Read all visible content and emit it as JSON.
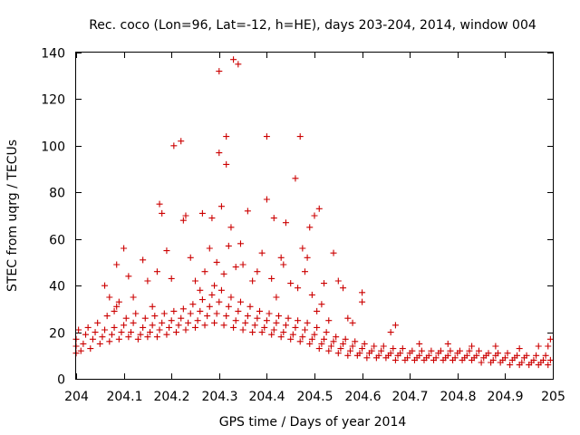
{
  "chart_data": {
    "type": "scatter",
    "title": "Rec. coco (Lon=96, Lat=-12, h=HE), days 203-204, 2014, window 004",
    "xlabel": "GPS time / Days of year 2014",
    "ylabel": "STEC from uqrg / TECUs",
    "xlim": [
      204,
      205
    ],
    "ylim": [
      0,
      140
    ],
    "xticks": [
      204,
      204.1,
      204.2,
      204.3,
      204.4,
      204.5,
      204.6,
      204.7,
      204.8,
      204.9,
      205
    ],
    "xtick_labels": [
      "204",
      "204.1",
      "204.2",
      "204.3",
      "204.4",
      "204.5",
      "204.6",
      "204.7",
      "204.8",
      "204.9",
      "205"
    ],
    "yticks": [
      0,
      20,
      40,
      60,
      80,
      100,
      120,
      140
    ],
    "ytick_labels": [
      "0",
      "20",
      "40",
      "60",
      "80",
      "100",
      "120",
      "140"
    ],
    "grid": false,
    "marker": "+",
    "color": "#cc0000",
    "series": [
      {
        "points": [
          [
            204.0,
            11
          ],
          [
            204.0,
            14
          ],
          [
            204.0,
            17
          ],
          [
            204.005,
            21
          ],
          [
            204.01,
            12
          ],
          [
            204.015,
            15
          ],
          [
            204.02,
            19
          ],
          [
            204.025,
            22
          ],
          [
            204.03,
            13
          ],
          [
            204.035,
            17
          ],
          [
            204.04,
            20
          ],
          [
            204.045,
            24
          ],
          [
            204.05,
            15
          ],
          [
            204.055,
            18
          ],
          [
            204.06,
            21
          ],
          [
            204.065,
            27
          ],
          [
            204.07,
            16
          ],
          [
            204.075,
            19
          ],
          [
            204.08,
            22
          ],
          [
            204.085,
            31
          ],
          [
            204.09,
            17
          ],
          [
            204.095,
            20
          ],
          [
            204.1,
            23
          ],
          [
            204.105,
            26
          ],
          [
            204.11,
            18
          ],
          [
            204.115,
            20
          ],
          [
            204.12,
            24
          ],
          [
            204.125,
            28
          ],
          [
            204.13,
            17
          ],
          [
            204.135,
            19
          ],
          [
            204.14,
            22
          ],
          [
            204.145,
            26
          ],
          [
            204.15,
            18
          ],
          [
            204.155,
            20
          ],
          [
            204.16,
            23
          ],
          [
            204.165,
            27
          ],
          [
            204.17,
            18
          ],
          [
            204.175,
            21
          ],
          [
            204.18,
            24
          ],
          [
            204.185,
            28
          ],
          [
            204.19,
            19
          ],
          [
            204.195,
            22
          ],
          [
            204.2,
            25
          ],
          [
            204.205,
            29
          ],
          [
            204.21,
            20
          ],
          [
            204.215,
            23
          ],
          [
            204.22,
            26
          ],
          [
            204.225,
            30
          ],
          [
            204.23,
            21
          ],
          [
            204.235,
            24
          ],
          [
            204.24,
            28
          ],
          [
            204.245,
            32
          ],
          [
            204.25,
            22
          ],
          [
            204.255,
            25
          ],
          [
            204.26,
            29
          ],
          [
            204.265,
            34
          ],
          [
            204.27,
            23
          ],
          [
            204.275,
            27
          ],
          [
            204.28,
            31
          ],
          [
            204.285,
            36
          ],
          [
            204.29,
            24
          ],
          [
            204.295,
            28
          ],
          [
            204.3,
            33
          ],
          [
            204.305,
            38
          ],
          [
            204.31,
            23
          ],
          [
            204.315,
            27
          ],
          [
            204.32,
            31
          ],
          [
            204.325,
            35
          ],
          [
            204.33,
            22
          ],
          [
            204.335,
            25
          ],
          [
            204.34,
            29
          ],
          [
            204.345,
            33
          ],
          [
            204.35,
            21
          ],
          [
            204.355,
            24
          ],
          [
            204.36,
            27
          ],
          [
            204.365,
            31
          ],
          [
            204.37,
            20
          ],
          [
            204.375,
            23
          ],
          [
            204.38,
            26
          ],
          [
            204.385,
            29
          ],
          [
            204.39,
            20
          ],
          [
            204.395,
            22
          ],
          [
            204.4,
            25
          ],
          [
            204.405,
            28
          ],
          [
            204.41,
            19
          ],
          [
            204.415,
            21
          ],
          [
            204.42,
            24
          ],
          [
            204.425,
            27
          ],
          [
            204.43,
            18
          ],
          [
            204.435,
            20
          ],
          [
            204.44,
            23
          ],
          [
            204.445,
            26
          ],
          [
            204.45,
            17
          ],
          [
            204.455,
            19
          ],
          [
            204.46,
            22
          ],
          [
            204.465,
            25
          ],
          [
            204.47,
            16
          ],
          [
            204.475,
            18
          ],
          [
            204.48,
            21
          ],
          [
            204.485,
            24
          ],
          [
            204.49,
            15
          ],
          [
            204.495,
            17
          ],
          [
            204.5,
            19
          ],
          [
            204.505,
            22
          ],
          [
            204.51,
            13
          ],
          [
            204.515,
            15
          ],
          [
            204.52,
            17
          ],
          [
            204.525,
            20
          ],
          [
            204.53,
            12
          ],
          [
            204.535,
            14
          ],
          [
            204.54,
            16
          ],
          [
            204.545,
            18
          ],
          [
            204.55,
            11
          ],
          [
            204.555,
            13
          ],
          [
            204.56,
            15
          ],
          [
            204.565,
            17
          ],
          [
            204.57,
            10
          ],
          [
            204.575,
            12
          ],
          [
            204.58,
            14
          ],
          [
            204.585,
            16
          ],
          [
            204.59,
            10
          ],
          [
            204.595,
            11
          ],
          [
            204.6,
            13
          ],
          [
            204.605,
            15
          ],
          [
            204.61,
            9
          ],
          [
            204.615,
            11
          ],
          [
            204.62,
            12
          ],
          [
            204.625,
            14
          ],
          [
            204.63,
            9
          ],
          [
            204.635,
            10
          ],
          [
            204.64,
            12
          ],
          [
            204.645,
            14
          ],
          [
            204.65,
            9
          ],
          [
            204.655,
            10
          ],
          [
            204.66,
            11
          ],
          [
            204.665,
            13
          ],
          [
            204.67,
            8
          ],
          [
            204.675,
            10
          ],
          [
            204.68,
            11
          ],
          [
            204.685,
            13
          ],
          [
            204.69,
            8
          ],
          [
            204.695,
            9
          ],
          [
            204.7,
            11
          ],
          [
            204.705,
            12
          ],
          [
            204.71,
            8
          ],
          [
            204.715,
            9
          ],
          [
            204.72,
            10
          ],
          [
            204.725,
            12
          ],
          [
            204.73,
            8
          ],
          [
            204.735,
            9
          ],
          [
            204.74,
            10
          ],
          [
            204.745,
            12
          ],
          [
            204.75,
            8
          ],
          [
            204.755,
            9
          ],
          [
            204.76,
            11
          ],
          [
            204.765,
            12
          ],
          [
            204.77,
            8
          ],
          [
            204.775,
            9
          ],
          [
            204.78,
            10
          ],
          [
            204.785,
            12
          ],
          [
            204.79,
            8
          ],
          [
            204.795,
            9
          ],
          [
            204.8,
            11
          ],
          [
            204.805,
            12
          ],
          [
            204.81,
            8
          ],
          [
            204.815,
            9
          ],
          [
            204.82,
            10
          ],
          [
            204.825,
            12
          ],
          [
            204.83,
            8
          ],
          [
            204.835,
            9
          ],
          [
            204.84,
            10
          ],
          [
            204.845,
            12
          ],
          [
            204.85,
            7
          ],
          [
            204.855,
            9
          ],
          [
            204.86,
            10
          ],
          [
            204.865,
            11
          ],
          [
            204.87,
            7
          ],
          [
            204.875,
            8
          ],
          [
            204.88,
            10
          ],
          [
            204.885,
            11
          ],
          [
            204.89,
            7
          ],
          [
            204.895,
            8
          ],
          [
            204.9,
            9
          ],
          [
            204.905,
            11
          ],
          [
            204.91,
            6
          ],
          [
            204.915,
            8
          ],
          [
            204.92,
            9
          ],
          [
            204.925,
            10
          ],
          [
            204.93,
            6
          ],
          [
            204.935,
            7
          ],
          [
            204.94,
            9
          ],
          [
            204.945,
            10
          ],
          [
            204.95,
            6
          ],
          [
            204.955,
            7
          ],
          [
            204.96,
            8
          ],
          [
            204.965,
            10
          ],
          [
            204.97,
            6
          ],
          [
            204.975,
            7
          ],
          [
            204.98,
            8
          ],
          [
            204.985,
            10
          ],
          [
            204.99,
            6
          ],
          [
            204.995,
            8
          ],
          [
            204.99,
            14
          ],
          [
            204.995,
            17
          ],
          [
            204.06,
            40
          ],
          [
            204.07,
            35
          ],
          [
            204.08,
            29
          ],
          [
            204.085,
            49
          ],
          [
            204.09,
            33
          ],
          [
            204.1,
            56
          ],
          [
            204.11,
            44
          ],
          [
            204.12,
            35
          ],
          [
            204.14,
            51
          ],
          [
            204.15,
            42
          ],
          [
            204.16,
            31
          ],
          [
            204.17,
            46
          ],
          [
            204.175,
            75
          ],
          [
            204.18,
            71
          ],
          [
            204.19,
            55
          ],
          [
            204.2,
            43
          ],
          [
            204.205,
            100
          ],
          [
            204.22,
            102
          ],
          [
            204.225,
            68
          ],
          [
            204.23,
            70
          ],
          [
            204.24,
            52
          ],
          [
            204.25,
            42
          ],
          [
            204.26,
            38
          ],
          [
            204.265,
            71
          ],
          [
            204.27,
            46
          ],
          [
            204.28,
            56
          ],
          [
            204.285,
            69
          ],
          [
            204.29,
            40
          ],
          [
            204.295,
            50
          ],
          [
            204.3,
            97
          ],
          [
            204.3,
            132
          ],
          [
            204.305,
            74
          ],
          [
            204.31,
            45
          ],
          [
            204.315,
            104
          ],
          [
            204.315,
            92
          ],
          [
            204.32,
            57
          ],
          [
            204.325,
            65
          ],
          [
            204.33,
            137
          ],
          [
            204.335,
            48
          ],
          [
            204.34,
            135
          ],
          [
            204.345,
            58
          ],
          [
            204.35,
            49
          ],
          [
            204.36,
            72
          ],
          [
            204.37,
            42
          ],
          [
            204.38,
            46
          ],
          [
            204.39,
            54
          ],
          [
            204.4,
            104
          ],
          [
            204.4,
            77
          ],
          [
            204.41,
            43
          ],
          [
            204.415,
            69
          ],
          [
            204.42,
            35
          ],
          [
            204.43,
            52
          ],
          [
            204.435,
            49
          ],
          [
            204.44,
            67
          ],
          [
            204.45,
            41
          ],
          [
            204.46,
            86
          ],
          [
            204.465,
            39
          ],
          [
            204.47,
            104
          ],
          [
            204.475,
            56
          ],
          [
            204.48,
            46
          ],
          [
            204.485,
            52
          ],
          [
            204.49,
            65
          ],
          [
            204.495,
            36
          ],
          [
            204.5,
            70
          ],
          [
            204.505,
            29
          ],
          [
            204.51,
            73
          ],
          [
            204.515,
            32
          ],
          [
            204.52,
            41
          ],
          [
            204.53,
            25
          ],
          [
            204.54,
            54
          ],
          [
            204.55,
            42
          ],
          [
            204.56,
            39
          ],
          [
            204.57,
            26
          ],
          [
            204.58,
            24
          ],
          [
            204.6,
            37
          ],
          [
            204.6,
            33
          ],
          [
            204.66,
            20
          ],
          [
            204.67,
            23
          ],
          [
            204.72,
            15
          ],
          [
            204.78,
            15
          ],
          [
            204.83,
            14
          ],
          [
            204.88,
            14
          ],
          [
            204.93,
            13
          ],
          [
            204.97,
            14
          ]
        ]
      }
    ]
  }
}
